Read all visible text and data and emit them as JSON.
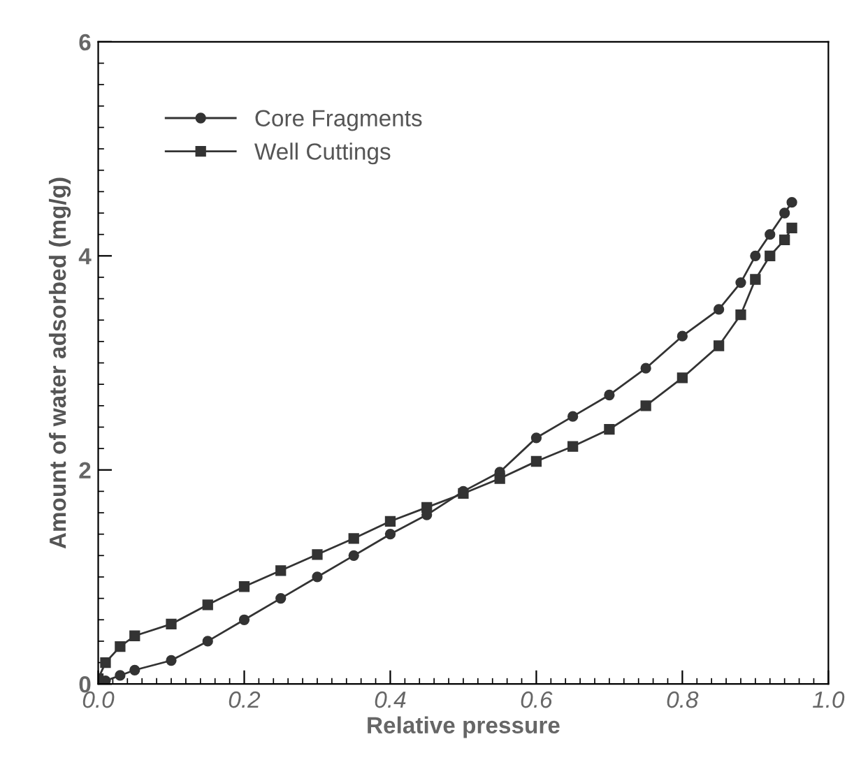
{
  "chart_data": {
    "type": "line",
    "xlabel": "Relative pressure",
    "ylabel": "Amount of water adsorbed (mg/g)",
    "xlim": [
      0,
      1.0
    ],
    "ylim": [
      0,
      6
    ],
    "xticks": [
      {
        "value": 0,
        "label": "0.0"
      },
      0.2,
      0.4,
      0.6,
      0.8,
      {
        "value": 1.0,
        "label": "1.0"
      }
    ],
    "yticks": [
      0,
      2,
      4,
      6
    ],
    "grid": false,
    "legend": "top left",
    "line_style": "solid",
    "series": [
      {
        "name": "Core Fragments",
        "color": "#333333",
        "marker": "circle",
        "x": [
          0.0,
          0.01,
          0.03,
          0.05,
          0.1,
          0.15,
          0.2,
          0.25,
          0.3,
          0.35,
          0.4,
          0.45,
          0.5,
          0.55,
          0.6,
          0.65,
          0.7,
          0.75,
          0.8,
          0.85,
          0.88,
          0.9,
          0.92,
          0.94,
          0.95
        ],
        "values": [
          0.0,
          0.03,
          0.08,
          0.13,
          0.22,
          0.4,
          0.6,
          0.8,
          1.0,
          1.2,
          1.4,
          1.58,
          1.8,
          1.98,
          2.3,
          2.5,
          2.7,
          2.95,
          3.25,
          3.5,
          3.75,
          4.0,
          4.2,
          4.4,
          4.5
        ]
      },
      {
        "name": "Well Cuttings",
        "color": "#333333",
        "marker": "square",
        "x": [
          0.0,
          0.01,
          0.03,
          0.05,
          0.1,
          0.15,
          0.2,
          0.25,
          0.3,
          0.35,
          0.4,
          0.45,
          0.5,
          0.55,
          0.6,
          0.65,
          0.7,
          0.75,
          0.8,
          0.85,
          0.88,
          0.9,
          0.92,
          0.94,
          0.95
        ],
        "values": [
          0.05,
          0.2,
          0.35,
          0.45,
          0.56,
          0.74,
          0.91,
          1.06,
          1.21,
          1.36,
          1.52,
          1.65,
          1.78,
          1.92,
          2.08,
          2.22,
          2.38,
          2.6,
          2.86,
          3.16,
          3.45,
          3.78,
          4.0,
          4.15,
          4.26
        ]
      }
    ]
  }
}
